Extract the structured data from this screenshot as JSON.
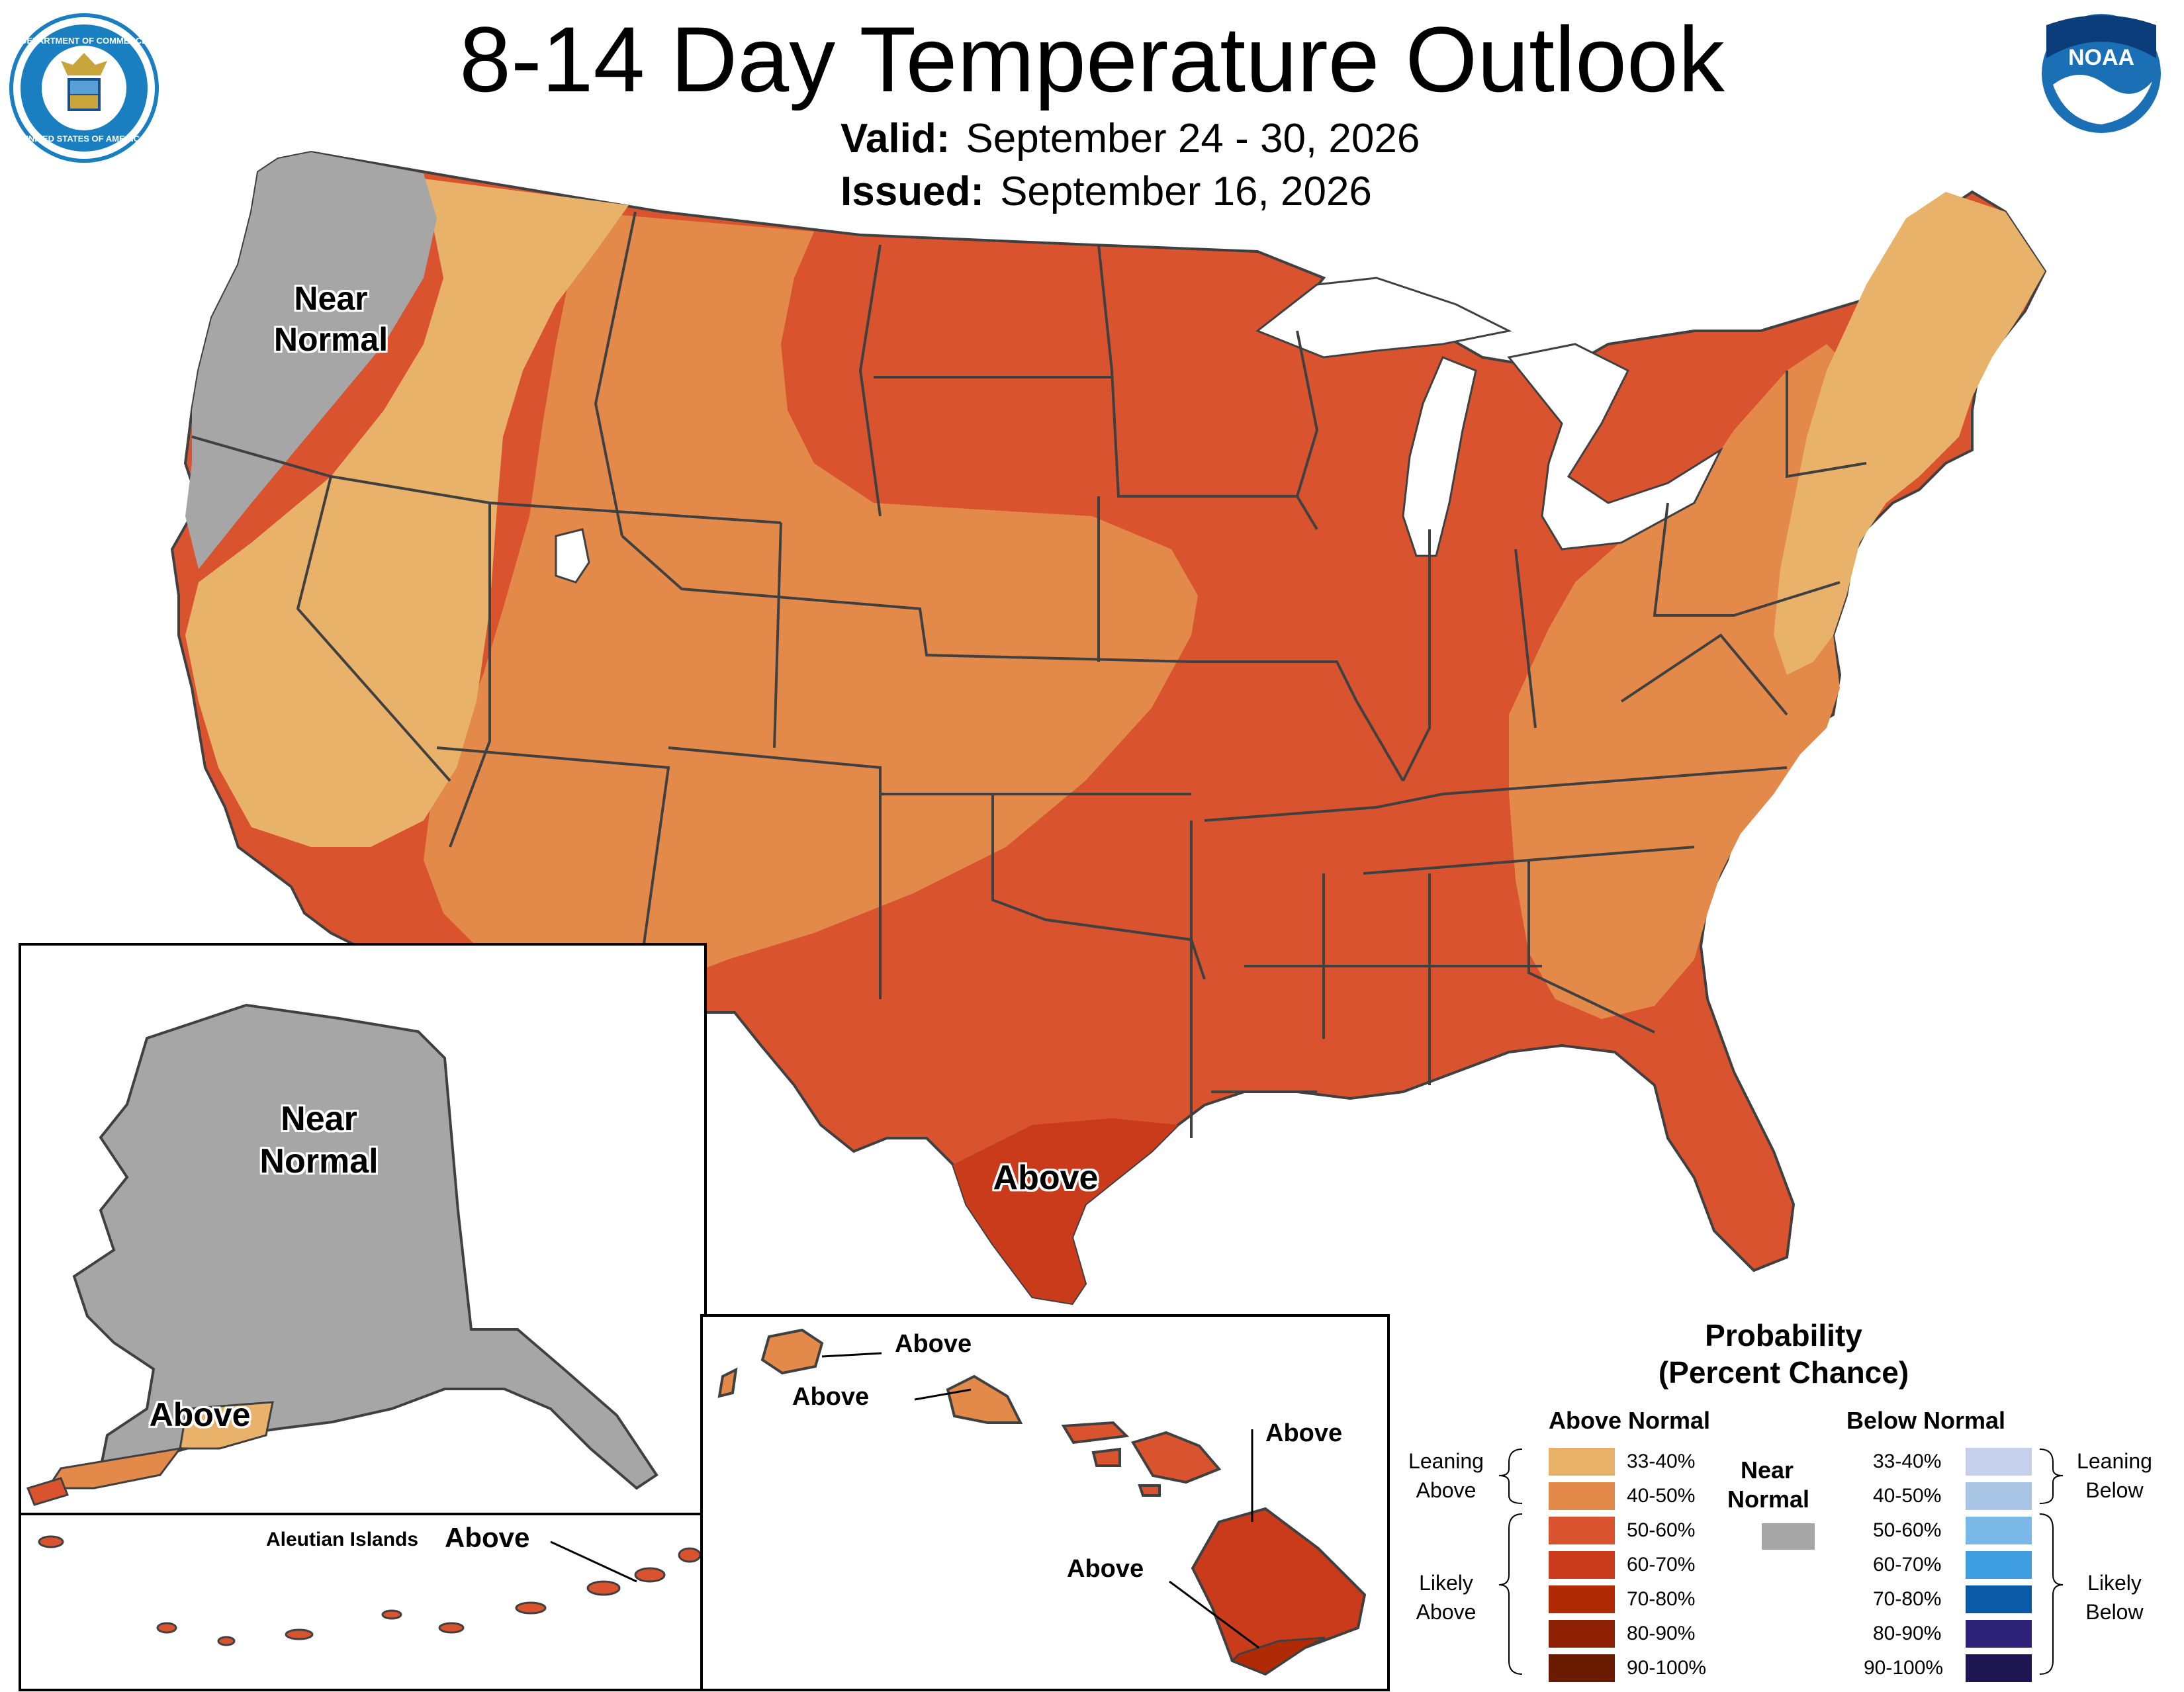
{
  "header": {
    "title": "8-14 Day Temperature Outlook",
    "valid_label": "Valid:",
    "valid_value": "September 24 - 30, 2026",
    "issued_label": "Issued:",
    "issued_value": "September 16, 2026"
  },
  "logos": {
    "left": "department-of-commerce-seal",
    "right": "noaa-logo",
    "noaa_text": "NOAA",
    "seal_text": "DEPARTMENT OF COMMERCE · UNITED STATES OF AMERICA"
  },
  "colors": {
    "above_33_40": "#e8b26a",
    "above_40_50": "#e3894a",
    "above_50_60": "#d9532f",
    "above_60_70": "#c93b1a",
    "above_70_80": "#b02a06",
    "above_80_90": "#8e2003",
    "above_90_100": "#6b1c00",
    "near_normal": "#a6a6a6",
    "below_33_40": "#c6d0ea",
    "below_40_50": "#a9c5e5",
    "below_50_60": "#7ab8e8",
    "below_60_70": "#3e9ee0",
    "below_70_80": "#0a5aa8",
    "below_80_90": "#2d2277",
    "below_90_100": "#1e1650",
    "state_line": "#404040",
    "background": "#ffffff"
  },
  "map_labels": {
    "conus_near_normal": "Near Normal",
    "conus_above": "Above",
    "alaska_near_normal": "Near Normal",
    "alaska_above": "Above",
    "aleutian_label": "Aleutian Islands",
    "aleutian_above": "Above",
    "hawaii_kauai": "Above",
    "hawaii_oahu": "Above",
    "hawaii_maui": "Above",
    "hawaii_big_island": "Above"
  },
  "legend": {
    "title_line1": "Probability",
    "title_line2": "(Percent Chance)",
    "above_header": "Above Normal",
    "below_header": "Below Normal",
    "near_header_line1": "Near",
    "near_header_line2": "Normal",
    "leaning_above_line1": "Leaning",
    "leaning_above_line2": "Above",
    "likely_above_line1": "Likely",
    "likely_above_line2": "Above",
    "leaning_below_line1": "Leaning",
    "leaning_below_line2": "Below",
    "likely_below_line1": "Likely",
    "likely_below_line2": "Below",
    "above_ranges": [
      "33-40%",
      "40-50%",
      "50-60%",
      "60-70%",
      "70-80%",
      "80-90%",
      "90-100%"
    ],
    "below_ranges": [
      "33-40%",
      "40-50%",
      "50-60%",
      "60-70%",
      "70-80%",
      "80-90%",
      "90-100%"
    ]
  }
}
